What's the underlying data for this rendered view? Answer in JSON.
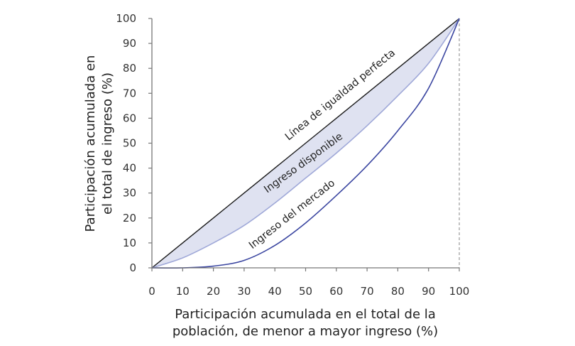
{
  "chart_data": {
    "type": "line",
    "xlabel": [
      "Participación acumulada en el total de la",
      "población, de menor a mayor ingreso (%)"
    ],
    "ylabel": [
      "Participación acumulada en",
      "el total de ingreso (%)"
    ],
    "xlim": [
      0,
      100
    ],
    "ylim": [
      0,
      100
    ],
    "xticks": [
      0,
      10,
      20,
      30,
      40,
      50,
      60,
      70,
      80,
      90,
      100
    ],
    "yticks": [
      0,
      10,
      20,
      30,
      40,
      50,
      60,
      70,
      80,
      90,
      100
    ],
    "grid": false,
    "x": [
      0,
      10,
      20,
      30,
      40,
      50,
      60,
      70,
      80,
      90,
      100
    ],
    "series": [
      {
        "name": "Línea de igualdad perfecta",
        "values": [
          0,
          10,
          20,
          30,
          40,
          50,
          60,
          70,
          80,
          90,
          100
        ],
        "color": "#1a1a1a"
      },
      {
        "name": "Ingreso disponible",
        "values": [
          0,
          4,
          10,
          17,
          26,
          36,
          46,
          57,
          69,
          82,
          100
        ],
        "color": "#9fa8d8"
      },
      {
        "name": "Ingreso del mercado",
        "values": [
          0,
          0,
          0.7,
          3,
          9,
          18,
          29,
          41,
          55,
          72,
          100
        ],
        "color": "#3a45a0"
      }
    ],
    "fill_between": {
      "upper": "Línea de igualdad perfecta",
      "lower": "Ingreso disponible",
      "color": "#dfe2f1"
    },
    "reference_line": {
      "x": 100,
      "style": "dashed",
      "color": "#999999"
    }
  }
}
